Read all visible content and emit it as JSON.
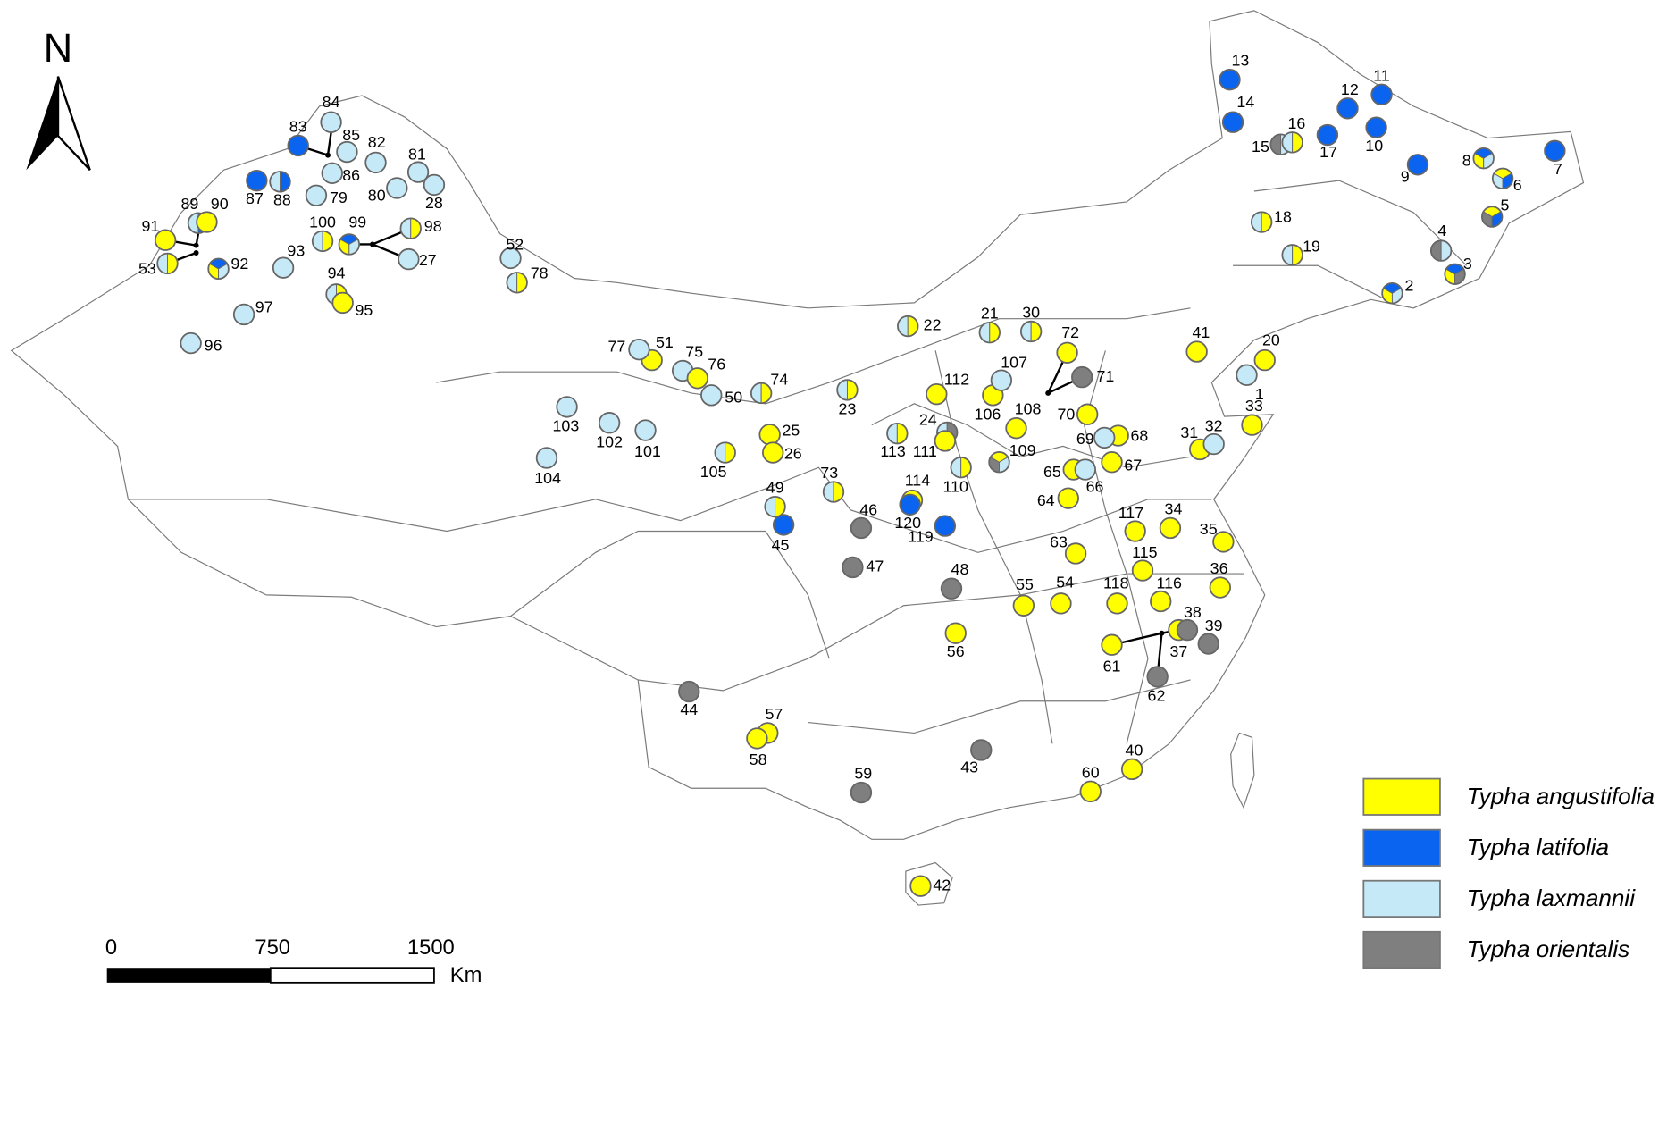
{
  "north": "N",
  "scale_bar": {
    "labels": [
      "0",
      "750",
      "1500"
    ],
    "unit": "Km"
  },
  "legend": [
    {
      "name": "Typha angustifolia",
      "color": "#ffff00"
    },
    {
      "name": "Typha latifolia",
      "color": "#0a64f0"
    },
    {
      "name": "Typha laxmannii",
      "color": "#c6e9f8"
    },
    {
      "name": "Typha orientalis",
      "color": "#7f7f7f"
    }
  ],
  "sites": [
    {
      "label": "1",
      "colors": [
        "#c6e9f8"
      ]
    },
    {
      "label": "2",
      "colors": [
        "#ffff00",
        "#0a64f0",
        "#c6e9f8"
      ]
    },
    {
      "label": "3",
      "colors": [
        "#ffff00",
        "#0a64f0",
        "#7f7f7f"
      ]
    },
    {
      "label": "4",
      "colors": [
        "#7f7f7f",
        "#c6e9f8"
      ]
    },
    {
      "label": "5",
      "colors": [
        "#7f7f7f",
        "#ffff00",
        "#0a64f0"
      ]
    },
    {
      "label": "6",
      "colors": [
        "#c6e9f8",
        "#ffff00",
        "#0a64f0"
      ]
    },
    {
      "label": "7",
      "colors": [
        "#0a64f0"
      ]
    },
    {
      "label": "8",
      "colors": [
        "#ffff00",
        "#0a64f0",
        "#c6e9f8"
      ]
    },
    {
      "label": "9",
      "colors": [
        "#0a64f0"
      ]
    },
    {
      "label": "10",
      "colors": [
        "#0a64f0"
      ]
    },
    {
      "label": "11",
      "colors": [
        "#0a64f0"
      ]
    },
    {
      "label": "12",
      "colors": [
        "#0a64f0"
      ]
    },
    {
      "label": "13",
      "colors": [
        "#0a64f0"
      ]
    },
    {
      "label": "14",
      "colors": [
        "#0a64f0"
      ]
    },
    {
      "label": "15",
      "colors": [
        "#7f7f7f",
        "#c6e9f8"
      ]
    },
    {
      "label": "16",
      "colors": [
        "#c6e9f8",
        "#ffff00"
      ]
    },
    {
      "label": "17",
      "colors": [
        "#0a64f0"
      ]
    },
    {
      "label": "18",
      "colors": [
        "#c6e9f8",
        "#ffff00"
      ]
    },
    {
      "label": "19",
      "colors": [
        "#c6e9f8",
        "#ffff00"
      ]
    },
    {
      "label": "20",
      "colors": [
        "#ffff00"
      ]
    },
    {
      "label": "21",
      "colors": [
        "#c6e9f8",
        "#ffff00"
      ]
    },
    {
      "label": "22",
      "colors": [
        "#c6e9f8",
        "#ffff00"
      ]
    },
    {
      "label": "23",
      "colors": [
        "#c6e9f8",
        "#ffff00"
      ]
    },
    {
      "label": "24",
      "colors": [
        "#c6e9f8",
        "#7f7f7f"
      ]
    },
    {
      "label": "25",
      "colors": [
        "#ffff00"
      ]
    },
    {
      "label": "26",
      "colors": [
        "#ffff00"
      ]
    },
    {
      "label": "27",
      "colors": [
        "#c6e9f8"
      ]
    },
    {
      "label": "28",
      "colors": [
        "#c6e9f8"
      ]
    },
    {
      "label": "30",
      "colors": [
        "#c6e9f8",
        "#ffff00"
      ]
    },
    {
      "label": "31",
      "colors": [
        "#ffff00"
      ]
    },
    {
      "label": "32",
      "colors": [
        "#c6e9f8"
      ]
    },
    {
      "label": "33",
      "colors": [
        "#ffff00"
      ]
    },
    {
      "label": "34",
      "colors": [
        "#ffff00"
      ]
    },
    {
      "label": "35",
      "colors": [
        "#ffff00"
      ]
    },
    {
      "label": "36",
      "colors": [
        "#ffff00"
      ]
    },
    {
      "label": "37",
      "colors": [
        "#ffff00"
      ]
    },
    {
      "label": "38",
      "colors": [
        "#7f7f7f"
      ]
    },
    {
      "label": "39",
      "colors": [
        "#7f7f7f"
      ]
    },
    {
      "label": "40",
      "colors": [
        "#ffff00"
      ]
    },
    {
      "label": "41",
      "colors": [
        "#ffff00"
      ]
    },
    {
      "label": "42",
      "colors": [
        "#ffff00"
      ]
    },
    {
      "label": "43",
      "colors": [
        "#7f7f7f"
      ]
    },
    {
      "label": "44",
      "colors": [
        "#7f7f7f"
      ]
    },
    {
      "label": "45",
      "colors": [
        "#0a64f0"
      ]
    },
    {
      "label": "46",
      "colors": [
        "#7f7f7f"
      ]
    },
    {
      "label": "47",
      "colors": [
        "#7f7f7f"
      ]
    },
    {
      "label": "48",
      "colors": [
        "#7f7f7f"
      ]
    },
    {
      "label": "49",
      "colors": [
        "#c6e9f8",
        "#ffff00"
      ]
    },
    {
      "label": "50",
      "colors": [
        "#c6e9f8"
      ]
    },
    {
      "label": "51",
      "colors": [
        "#ffff00"
      ]
    },
    {
      "label": "52",
      "colors": [
        "#c6e9f8"
      ]
    },
    {
      "label": "53",
      "colors": [
        "#c6e9f8",
        "#ffff00"
      ]
    },
    {
      "label": "54",
      "colors": [
        "#ffff00"
      ]
    },
    {
      "label": "55",
      "colors": [
        "#ffff00"
      ]
    },
    {
      "label": "56",
      "colors": [
        "#ffff00"
      ]
    },
    {
      "label": "57",
      "colors": [
        "#ffff00"
      ]
    },
    {
      "label": "58",
      "colors": [
        "#ffff00"
      ]
    },
    {
      "label": "59",
      "colors": [
        "#7f7f7f"
      ]
    },
    {
      "label": "60",
      "colors": [
        "#ffff00"
      ]
    },
    {
      "label": "61",
      "colors": [
        "#ffff00"
      ]
    },
    {
      "label": "62",
      "colors": [
        "#7f7f7f"
      ]
    },
    {
      "label": "63",
      "colors": [
        "#ffff00"
      ]
    },
    {
      "label": "64",
      "colors": [
        "#ffff00"
      ]
    },
    {
      "label": "65",
      "colors": [
        "#ffff00"
      ]
    },
    {
      "label": "66",
      "colors": [
        "#c6e9f8"
      ]
    },
    {
      "label": "67",
      "colors": [
        "#ffff00"
      ]
    },
    {
      "label": "68",
      "colors": [
        "#ffff00"
      ]
    },
    {
      "label": "69",
      "colors": [
        "#c6e9f8"
      ]
    },
    {
      "label": "70",
      "colors": [
        "#ffff00"
      ]
    },
    {
      "label": "71",
      "colors": [
        "#7f7f7f"
      ]
    },
    {
      "label": "72",
      "colors": [
        "#ffff00"
      ]
    },
    {
      "label": "73",
      "colors": [
        "#c6e9f8",
        "#ffff00"
      ]
    },
    {
      "label": "74",
      "colors": [
        "#c6e9f8",
        "#ffff00"
      ]
    },
    {
      "label": "75",
      "colors": [
        "#c6e9f8"
      ]
    },
    {
      "label": "76",
      "colors": [
        "#ffff00"
      ]
    },
    {
      "label": "77",
      "colors": [
        "#c6e9f8"
      ]
    },
    {
      "label": "78",
      "colors": [
        "#c6e9f8",
        "#ffff00"
      ]
    },
    {
      "label": "79",
      "colors": [
        "#c6e9f8"
      ]
    },
    {
      "label": "80",
      "colors": [
        "#c6e9f8"
      ]
    },
    {
      "label": "81",
      "colors": [
        "#c6e9f8"
      ]
    },
    {
      "label": "82",
      "colors": [
        "#c6e9f8"
      ]
    },
    {
      "label": "83",
      "colors": [
        "#0a64f0"
      ]
    },
    {
      "label": "84",
      "colors": [
        "#c6e9f8"
      ]
    },
    {
      "label": "85",
      "colors": [
        "#c6e9f8"
      ]
    },
    {
      "label": "86",
      "colors": [
        "#c6e9f8"
      ]
    },
    {
      "label": "87",
      "colors": [
        "#0a64f0"
      ]
    },
    {
      "label": "88",
      "colors": [
        "#c6e9f8",
        "#0a64f0"
      ]
    },
    {
      "label": "89",
      "colors": [
        "#c6e9f8",
        "#0a64f0"
      ]
    },
    {
      "label": "90",
      "colors": [
        "#ffff00"
      ]
    },
    {
      "label": "91",
      "colors": [
        "#ffff00"
      ]
    },
    {
      "label": "92",
      "colors": [
        "#ffff00",
        "#0a64f0",
        "#c6e9f8"
      ]
    },
    {
      "label": "93",
      "colors": [
        "#c6e9f8"
      ]
    },
    {
      "label": "94",
      "colors": [
        "#c6e9f8",
        "#ffff00"
      ]
    },
    {
      "label": "95",
      "colors": [
        "#ffff00"
      ]
    },
    {
      "label": "96",
      "colors": [
        "#c6e9f8"
      ]
    },
    {
      "label": "97",
      "colors": [
        "#c6e9f8"
      ]
    },
    {
      "label": "98",
      "colors": [
        "#c6e9f8",
        "#ffff00"
      ]
    },
    {
      "label": "99",
      "colors": [
        "#ffff00",
        "#0a64f0",
        "#c6e9f8"
      ]
    },
    {
      "label": "100",
      "colors": [
        "#c6e9f8",
        "#ffff00"
      ]
    },
    {
      "label": "101",
      "colors": [
        "#c6e9f8"
      ]
    },
    {
      "label": "102",
      "colors": [
        "#c6e9f8"
      ]
    },
    {
      "label": "103",
      "colors": [
        "#c6e9f8"
      ]
    },
    {
      "label": "104",
      "colors": [
        "#c6e9f8"
      ]
    },
    {
      "label": "105",
      "colors": [
        "#c6e9f8",
        "#ffff00"
      ]
    },
    {
      "label": "106",
      "colors": [
        "#ffff00"
      ]
    },
    {
      "label": "107",
      "colors": [
        "#c6e9f8"
      ]
    },
    {
      "label": "108",
      "colors": [
        "#ffff00"
      ]
    },
    {
      "label": "109",
      "colors": [
        "#7f7f7f",
        "#ffff00",
        "#c6e9f8"
      ]
    },
    {
      "label": "110",
      "colors": [
        "#c6e9f8",
        "#ffff00"
      ]
    },
    {
      "label": "111",
      "colors": [
        "#ffff00"
      ]
    },
    {
      "label": "112",
      "colors": [
        "#ffff00"
      ]
    },
    {
      "label": "113",
      "colors": [
        "#c6e9f8",
        "#ffff00"
      ]
    },
    {
      "label": "114",
      "colors": [
        "#ffff00"
      ]
    },
    {
      "label": "115",
      "colors": [
        "#ffff00"
      ]
    },
    {
      "label": "116",
      "colors": [
        "#ffff00"
      ]
    },
    {
      "label": "117",
      "colors": [
        "#ffff00"
      ]
    },
    {
      "label": "118",
      "colors": [
        "#ffff00"
      ]
    },
    {
      "label": "119",
      "colors": [
        "#0a64f0"
      ]
    },
    {
      "label": "120",
      "colors": [
        "#0a64f0"
      ]
    }
  ]
}
